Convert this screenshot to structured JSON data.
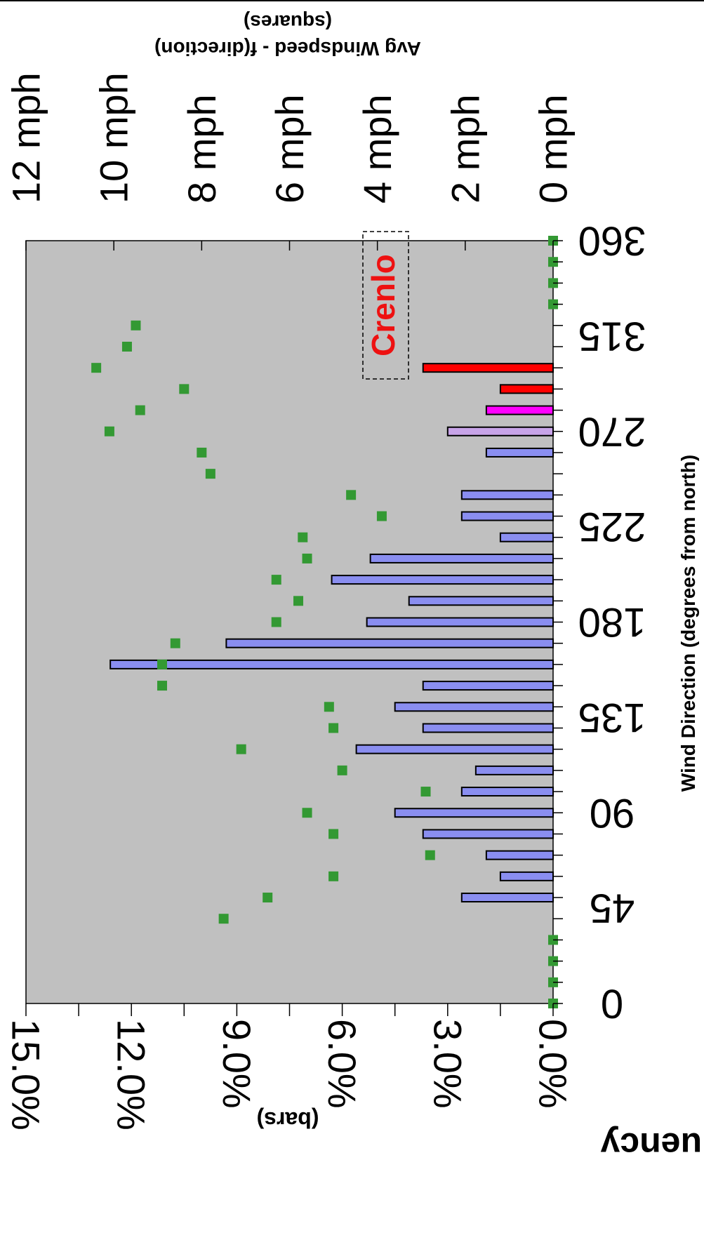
{
  "chart_data": {
    "type": "bar",
    "orientation": "rotated 90 degrees clockwise",
    "x": [
      0,
      10,
      20,
      30,
      40,
      50,
      60,
      70,
      80,
      90,
      100,
      110,
      120,
      130,
      140,
      150,
      160,
      170,
      180,
      190,
      200,
      210,
      220,
      230,
      240,
      250,
      260,
      270,
      280,
      290,
      300,
      310,
      320,
      330,
      340,
      350,
      360
    ],
    "xlabel": "Wind Direction (degrees from north)",
    "xticks": [
      "0",
      "45",
      "90",
      "135",
      "180",
      "225",
      "270",
      "315",
      "360"
    ],
    "x_range": [
      0,
      360
    ],
    "series": [
      {
        "name": "Frequency",
        "kind": "bars",
        "values": [
          0,
          0,
          0,
          0,
          0,
          2.6,
          1.5,
          1.9,
          3.7,
          4.5,
          2.6,
          2.2,
          5.6,
          3.7,
          4.5,
          3.7,
          12.6,
          9.3,
          5.3,
          4.1,
          6.3,
          5.2,
          1.5,
          2.6,
          2.6,
          0,
          1.9,
          3.0,
          1.9,
          1.5,
          3.7,
          0,
          0,
          0,
          0,
          0,
          0
        ],
        "colors": [
          "#8a8ef0",
          "#8a8ef0",
          "#8a8ef0",
          "#8a8ef0",
          "#8a8ef0",
          "#8a8ef0",
          "#8a8ef0",
          "#8a8ef0",
          "#8a8ef0",
          "#8a8ef0",
          "#8a8ef0",
          "#8a8ef0",
          "#8a8ef0",
          "#8a8ef0",
          "#8a8ef0",
          "#8a8ef0",
          "#8a8ef0",
          "#8a8ef0",
          "#8a8ef0",
          "#8a8ef0",
          "#8a8ef0",
          "#8a8ef0",
          "#8a8ef0",
          "#8a8ef0",
          "#8a8ef0",
          "#8a8ef0",
          "#8a8ef0",
          "#c8a4e8",
          "#ff00ff",
          "#ff0000",
          "#ff0000",
          "#8a8ef0",
          "#8a8ef0",
          "#8a8ef0",
          "#8a8ef0",
          "#8a8ef0",
          "#8a8ef0"
        ]
      },
      {
        "name": "Avg Windspeed - f(direction)",
        "kind": "squares",
        "values": [
          0,
          0,
          0,
          0,
          7.5,
          6.5,
          5.0,
          2.8,
          5.0,
          5.6,
          2.9,
          4.8,
          7.1,
          5.0,
          5.1,
          8.9,
          8.9,
          8.6,
          6.3,
          5.8,
          6.3,
          5.6,
          5.7,
          3.9,
          4.6,
          7.8,
          8.0,
          10.1,
          9.4,
          8.4,
          10.4,
          9.7,
          9.5,
          0,
          0,
          0,
          0
        ],
        "color": "#339933"
      }
    ],
    "axes": {
      "frequency": {
        "title": "Frequency",
        "subtitle": "(bars)",
        "ticks": [
          "0.0%",
          "3.0%",
          "6.0%",
          "9.0%",
          "12.0%",
          "15.0%"
        ],
        "range": [
          0,
          15
        ]
      },
      "windspeed": {
        "title": "Avg Windspeed - f(direction)",
        "subtitle": "(squares)",
        "ticks": [
          "0 mph",
          "2 mph",
          "4 mph",
          "6 mph",
          "8 mph",
          "10 mph",
          "12 mph"
        ],
        "range": [
          0,
          12
        ]
      }
    },
    "annotation": "Crenlo",
    "grid": false,
    "plot_background": "#c0c0c0"
  }
}
